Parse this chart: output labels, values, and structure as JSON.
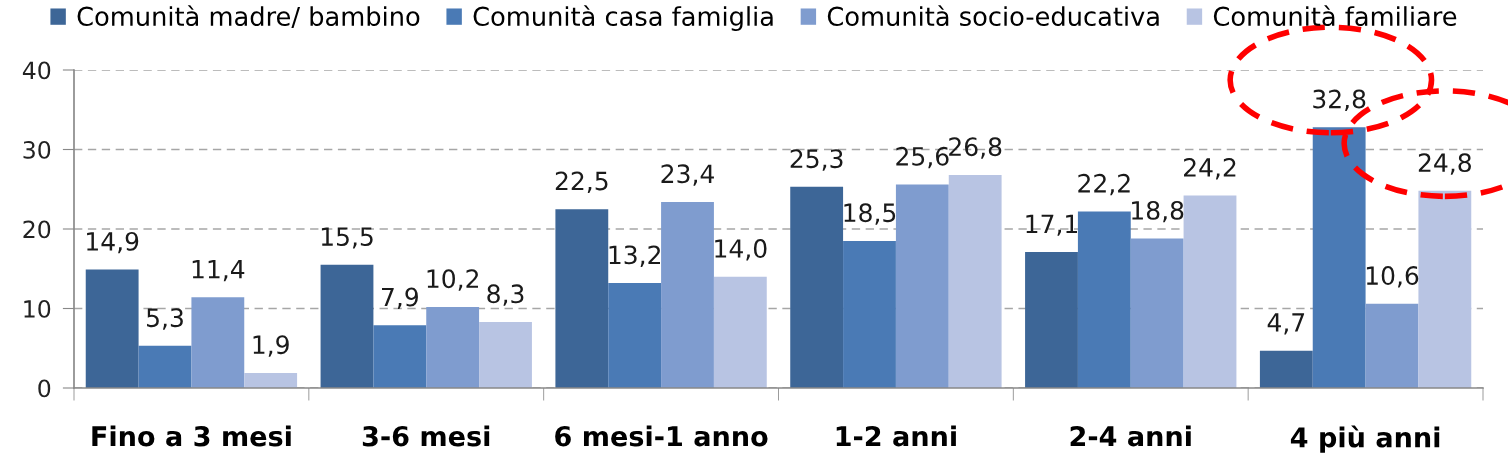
{
  "chart_data": {
    "type": "bar",
    "categories": [
      "Fino a 3 mesi",
      "3-6 mesi",
      "6 mesi-1 anno",
      "1-2 anni",
      "2-4 anni",
      "4 più anni"
    ],
    "series": [
      {
        "name": "Comunità madre/ bambino",
        "color": "#3d6697",
        "values": [
          14.9,
          15.5,
          22.5,
          25.3,
          17.1,
          4.7
        ],
        "value_labels": [
          "14,9",
          "15,5",
          "22,5",
          "25,3",
          "17,1",
          "4,7"
        ]
      },
      {
        "name": "Comunità casa famiglia",
        "color": "#4a7ab5",
        "values": [
          5.3,
          7.9,
          13.2,
          18.5,
          22.2,
          32.8
        ],
        "value_labels": [
          "5,3",
          "7,9",
          "13,2",
          "18,5",
          "22,2",
          "32,8"
        ]
      },
      {
        "name": "Comunità socio-educativa",
        "color": "#7f9ccf",
        "values": [
          11.4,
          10.2,
          23.4,
          25.6,
          18.8,
          10.6
        ],
        "value_labels": [
          "11,4",
          "10,2",
          "23,4",
          "25,6",
          "18,8",
          "10,6"
        ]
      },
      {
        "name": "Comunità familiare",
        "color": "#b8c4e3",
        "values": [
          1.9,
          8.3,
          14.0,
          26.8,
          24.2,
          24.8
        ],
        "value_labels": [
          "1,9",
          "8,3",
          "14,0",
          "26,8",
          "24,2",
          "24,8"
        ]
      }
    ],
    "ylim": [
      0,
      40
    ],
    "yticks": [
      0,
      10,
      20,
      30,
      40
    ],
    "grid": "y",
    "legend": "top"
  }
}
